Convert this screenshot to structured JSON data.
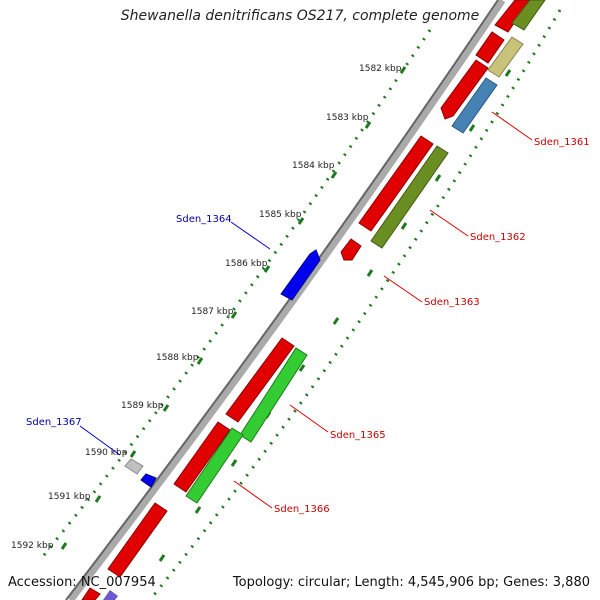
{
  "title": "Shewanella denitrificans OS217, complete genome",
  "footer": {
    "accession": "Accession: NC_007954",
    "summary": "Topology: circular; Length: 4,545,906 bp; Genes: 3,880"
  },
  "colors": {
    "gene_forward": "#e00000",
    "gene_reverse_blue": "#0000ee",
    "gene_green": "#33cc33",
    "gene_olive": "#6b8e23",
    "gene_khaki": "#c8c27a",
    "gene_steelblue": "#4682b4",
    "gene_gray": "#bbbbbb",
    "backbone": "#888888",
    "tick_green": "#1f7a1f",
    "label_red": "#cc0000",
    "label_blue": "#0000aa"
  },
  "kbp_labels": [
    "1582 kbp",
    "1583 kbp",
    "1584 kbp",
    "1585 kbp",
    "1586 kbp",
    "1587 kbp",
    "1588 kbp",
    "1589 kbp",
    "1590 kbp",
    "1591 kbp",
    "1592 kbp"
  ],
  "gene_labels": {
    "sden_1361": "Sden_1361",
    "sden_1362": "Sden_1362",
    "sden_1363": "Sden_1363",
    "sden_1364": "Sden_1364",
    "sden_1365": "Sden_1365",
    "sden_1366": "Sden_1366",
    "sden_1367": "Sden_1367"
  }
}
